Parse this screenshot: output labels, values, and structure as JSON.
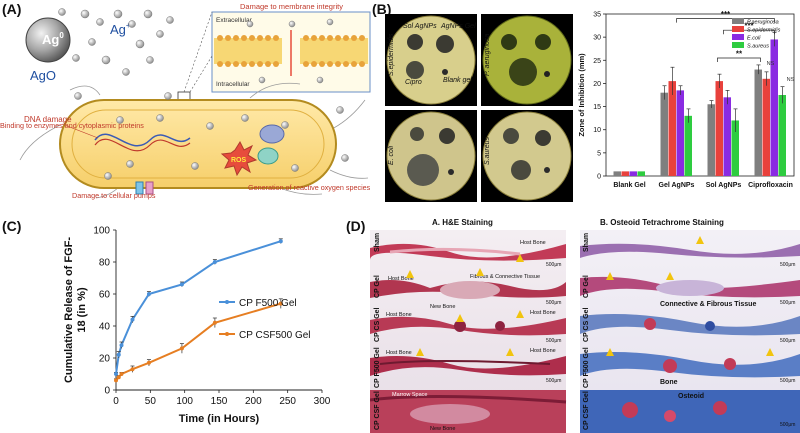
{
  "panel_a": {
    "letter": "(A)",
    "ag_zero": "Ag",
    "ag_zero_sup": "0",
    "ag_plus": "Ag",
    "ag_plus_sup": "+",
    "ago": "AgO",
    "membrane_title": "Damage to membrane integrity",
    "extracellular": "Extracellular",
    "intracellular": "Intracellular",
    "dna_damage": "DNA damage",
    "enzymes": "Binding to enzymes and cytoplasmic proteins",
    "ros_badge": "ROS",
    "ros_label": "Generation of reactive oxygen species",
    "pumps": "Damage to cellular pumps"
  },
  "panel_b": {
    "letter": "(B)",
    "plates": [
      {
        "organism": "S.epidermidis",
        "labels": [
          "Sol AgNPs",
          "AgNPs Gel",
          "Cipro",
          "Blank gel"
        ]
      },
      {
        "organism": "P. aeruginosa",
        "labels": []
      },
      {
        "organism": "E. coli",
        "labels": []
      },
      {
        "organism": "S.aureus",
        "labels": []
      }
    ],
    "significance": [
      "***",
      "***",
      "**"
    ],
    "ns_labels": [
      "NS",
      "NS"
    ]
  },
  "panel_c": {
    "letter": "(C)"
  },
  "panel_d": {
    "letter": "(D)",
    "col_titles": [
      "A. H&E Staining",
      "B. Osteoid Tetrachrome Staining"
    ],
    "row_labels": [
      "Sham",
      "CP Gel",
      "CP CS Gel",
      "CP F500 Gel",
      "CP CSF Gel"
    ],
    "he_annotations": [
      "Host Bone",
      "Host Bone",
      "Fibrous & Connective Tissue",
      "New Bone",
      "Host Bone",
      "Host Bone",
      "Host Bone",
      "Host Bone",
      "Marrow Space",
      "New Bone"
    ],
    "ot_annotations": [
      "Connective & Fibrous Tissue",
      "Bone",
      "Osteoid"
    ],
    "scale_bar": "500μm"
  },
  "chart_data": [
    {
      "type": "bar",
      "title": "",
      "xlabel": "",
      "ylabel": "Zone of Inhibition (mm)",
      "categories": [
        "Blank Gel",
        "Gel AgNPs",
        "Sol AgNPs",
        "Ciprofloxacin"
      ],
      "ylim": [
        0,
        35
      ],
      "yticks": [
        0,
        5,
        10,
        15,
        20,
        25,
        30,
        35
      ],
      "legend_position": "top-right",
      "series": [
        {
          "name": "P.aeruginosa",
          "color": "#7f7f7f",
          "values": [
            1,
            18,
            15.5,
            23
          ],
          "errors": [
            0,
            1.5,
            0.8,
            1
          ]
        },
        {
          "name": "S.epidermidis",
          "color": "#e8413c",
          "values": [
            1,
            20.5,
            20.5,
            21
          ],
          "errors": [
            0,
            3,
            1.5,
            1.5
          ]
        },
        {
          "name": "E.coli",
          "color": "#8a2be2",
          "values": [
            1,
            18.5,
            17,
            29.5
          ],
          "errors": [
            0,
            1,
            1.5,
            1.5
          ]
        },
        {
          "name": "S.aureus",
          "color": "#2ecc40",
          "values": [
            1,
            13,
            12,
            17.5
          ],
          "errors": [
            0,
            1.5,
            2.5,
            1.8
          ]
        }
      ]
    },
    {
      "type": "line",
      "title": "",
      "xlabel": "Time (in Hours)",
      "ylabel": "Cumulative Release of FGF-18 (in %)",
      "xlim": [
        0,
        300
      ],
      "ylim": [
        0,
        100
      ],
      "xticks": [
        0,
        50,
        100,
        150,
        200,
        250,
        300
      ],
      "yticks": [
        0,
        20,
        40,
        60,
        80,
        100
      ],
      "legend_position": "center-right",
      "series": [
        {
          "name": "CP F500 Gel",
          "color": "#4a90d9",
          "x": [
            0,
            4,
            8,
            24,
            48,
            96,
            144,
            240
          ],
          "y": [
            10,
            22,
            28,
            44,
            60,
            66,
            80,
            93
          ],
          "errors": [
            1,
            2,
            2,
            2,
            1.5,
            1.5,
            1.5,
            1.5
          ]
        },
        {
          "name": "CP CSF500 Gel",
          "color": "#e67e22",
          "x": [
            0,
            4,
            8,
            24,
            48,
            96,
            144,
            240
          ],
          "y": [
            6,
            8,
            10,
            13,
            17,
            26,
            42,
            54
          ],
          "errors": [
            1,
            1,
            1,
            2,
            2,
            3,
            3,
            3
          ]
        }
      ]
    }
  ]
}
